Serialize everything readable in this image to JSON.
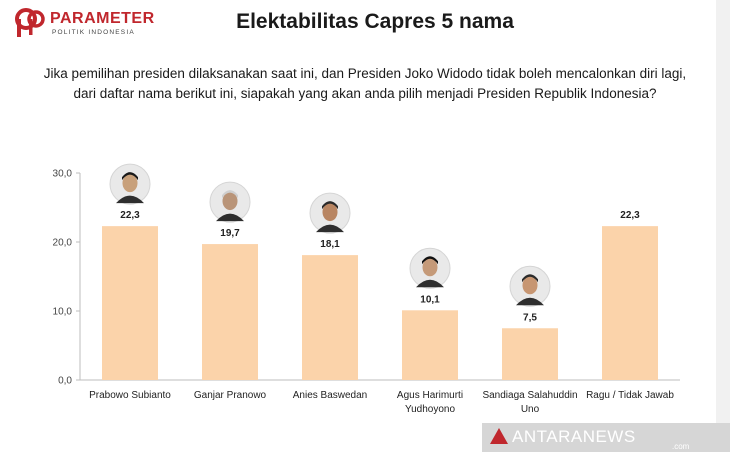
{
  "logo": {
    "name": "PARAMETER",
    "tagline": "POLITIK INDONESIA",
    "brand_color": "#c0272d"
  },
  "title": "Elektabilitas Capres 5 nama",
  "question": "Jika pemilihan presiden dilaksanakan saat ini, dan Presiden Joko Widodo tidak boleh mencalonkan diri lagi, dari daftar nama berikut ini, siapakah yang akan anda pilih menjadi Presiden Republik Indonesia?",
  "chart_data": {
    "type": "bar",
    "categories": [
      [
        "Prabowo Subianto"
      ],
      [
        "Ganjar Pranowo"
      ],
      [
        "Anies Baswedan"
      ],
      [
        "Agus Harimurti",
        "Yudhoyono"
      ],
      [
        "Sandiaga Salahuddin",
        "Uno"
      ],
      [
        "Ragu / Tidak Jawab"
      ]
    ],
    "values": [
      22.3,
      19.7,
      18.1,
      10.1,
      7.5,
      22.3
    ],
    "value_labels": [
      "22,3",
      "19,7",
      "18,1",
      "10,1",
      "7,5",
      "22,3"
    ],
    "ylim": [
      0,
      30
    ],
    "yticks": [
      0,
      10,
      20,
      30
    ],
    "ytick_labels": [
      "0,0",
      "10,0",
      "20,0",
      "30,0"
    ],
    "bar_color": "#fbd3aa",
    "grid": false,
    "photos": [
      "prabowo-photo",
      "ganjar-photo",
      "anies-photo",
      "ahy-photo",
      "sandiaga-photo",
      null
    ]
  },
  "watermark": {
    "text": "ANTARANEWS",
    "sub": ".com"
  }
}
